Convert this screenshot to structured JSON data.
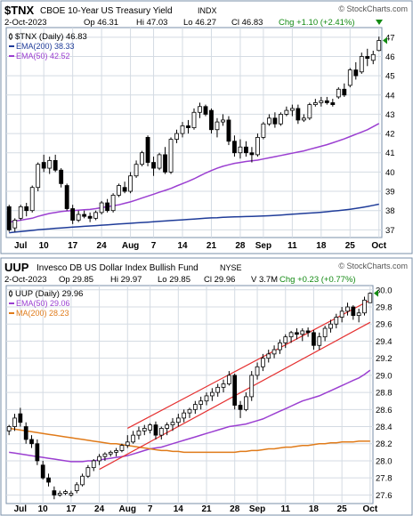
{
  "brand": "© StockCharts.com",
  "colors": {
    "frame": "#7a8fa8",
    "plot_bg": "#ffffff",
    "grid": "#d4dbe3",
    "candle_up_fill": "#ffffff",
    "candle_down_fill": "#000000",
    "ema200": "#1f3c99",
    "ema50": "#9b3fd1",
    "ma200": "#e07b1a",
    "trendline": "#e53030",
    "green": "#138a13",
    "price_marker": "#138a13"
  },
  "chart_data": [
    {
      "type": "candlestick",
      "symbol": "$TNX",
      "name": "CBOE 10-Year US Treasury Yield",
      "exchange": "INDX",
      "date": "2-Oct-2023",
      "open_label": "Op 46.31",
      "high_label": "Hi 47.03",
      "low_label": "Lo 46.27",
      "close_label": "Cl 46.83",
      "change_label": "Chg +1.10 (+2.41%)",
      "legend": [
        {
          "label": "$TNX (Daily) 46.83",
          "color": "#000000",
          "kind": "price"
        },
        {
          "label": "EMA(200) 38.33",
          "color": "#1f3c99",
          "kind": "line"
        },
        {
          "label": "EMA(50) 42.52",
          "color": "#9b3fd1",
          "kind": "line"
        }
      ],
      "y_ticks": [
        "37",
        "38",
        "39",
        "40",
        "41",
        "42",
        "43",
        "44",
        "45",
        "46",
        "47"
      ],
      "ylim": [
        36.6,
        47.5
      ],
      "x_ticks": [
        {
          "label": "Jul",
          "i": 2
        },
        {
          "label": "10",
          "i": 6
        },
        {
          "label": "17",
          "i": 11
        },
        {
          "label": "24",
          "i": 16
        },
        {
          "label": "Aug",
          "i": 21
        },
        {
          "label": "7",
          "i": 25
        },
        {
          "label": "14",
          "i": 30
        },
        {
          "label": "21",
          "i": 35
        },
        {
          "label": "28",
          "i": 40
        },
        {
          "label": "Sep",
          "i": 44
        },
        {
          "label": "11",
          "i": 49
        },
        {
          "label": "18",
          "i": 54
        },
        {
          "label": "25",
          "i": 59
        },
        {
          "label": "Oct",
          "i": 64
        }
      ],
      "n_slots": 65,
      "ohlc": [
        [
          38.2,
          38.3,
          36.9,
          37.0
        ],
        [
          37.1,
          37.6,
          36.9,
          37.5
        ],
        [
          37.6,
          38.3,
          37.5,
          38.2
        ],
        [
          38.2,
          38.4,
          37.7,
          38.0
        ],
        [
          38.0,
          39.3,
          37.9,
          39.2
        ],
        [
          39.2,
          40.5,
          39.0,
          40.4
        ],
        [
          40.5,
          40.9,
          40.0,
          40.2
        ],
        [
          40.2,
          40.8,
          39.9,
          40.6
        ],
        [
          40.6,
          40.9,
          40.0,
          40.1
        ],
        [
          40.1,
          40.2,
          39.2,
          39.4
        ],
        [
          39.3,
          39.4,
          38.0,
          38.1
        ],
        [
          38.1,
          38.3,
          37.3,
          37.5
        ],
        [
          37.5,
          38.0,
          37.4,
          37.8
        ],
        [
          37.8,
          38.0,
          37.6,
          37.7
        ],
        [
          37.7,
          37.9,
          37.4,
          37.6
        ],
        [
          37.6,
          38.0,
          37.5,
          37.9
        ],
        [
          37.9,
          38.5,
          37.8,
          38.4
        ],
        [
          38.4,
          38.6,
          37.9,
          38.0
        ],
        [
          38.0,
          38.9,
          37.9,
          38.8
        ],
        [
          38.8,
          39.4,
          38.7,
          39.3
        ],
        [
          39.2,
          39.5,
          38.9,
          39.0
        ],
        [
          39.0,
          40.0,
          38.9,
          39.8
        ],
        [
          39.8,
          40.6,
          39.7,
          40.4
        ],
        [
          40.4,
          41.1,
          40.3,
          41.0
        ],
        [
          41.8,
          41.9,
          40.3,
          40.5
        ],
        [
          40.5,
          40.8,
          39.8,
          40.2
        ],
        [
          40.2,
          41.0,
          40.1,
          40.9
        ],
        [
          40.9,
          41.3,
          39.9,
          40.0
        ],
        [
          40.0,
          41.8,
          39.9,
          41.7
        ],
        [
          41.7,
          42.2,
          41.5,
          42.0
        ],
        [
          42.0,
          42.6,
          41.8,
          42.4
        ],
        [
          42.4,
          42.7,
          42.0,
          42.3
        ],
        [
          42.3,
          43.3,
          42.2,
          43.1
        ],
        [
          43.1,
          43.6,
          42.8,
          43.4
        ],
        [
          43.4,
          43.5,
          42.9,
          43.0
        ],
        [
          43.2,
          43.3,
          42.0,
          42.2
        ],
        [
          42.2,
          42.8,
          41.8,
          42.6
        ],
        [
          42.6,
          43.0,
          42.4,
          42.7
        ],
        [
          42.7,
          42.9,
          41.4,
          41.6
        ],
        [
          41.6,
          41.9,
          40.8,
          41.0
        ],
        [
          41.0,
          41.7,
          40.7,
          41.3
        ],
        [
          41.3,
          41.6,
          40.8,
          41.0
        ],
        [
          41.0,
          41.3,
          40.5,
          40.9
        ],
        [
          40.9,
          42.0,
          40.8,
          41.8
        ],
        [
          41.8,
          42.6,
          41.7,
          42.5
        ],
        [
          42.5,
          43.0,
          42.4,
          42.8
        ],
        [
          42.8,
          43.1,
          42.3,
          42.5
        ],
        [
          42.5,
          43.1,
          42.4,
          43.0
        ],
        [
          43.0,
          43.4,
          42.9,
          43.2
        ],
        [
          43.2,
          43.5,
          42.9,
          43.3
        ],
        [
          43.3,
          43.5,
          42.5,
          42.7
        ],
        [
          42.7,
          43.0,
          42.6,
          42.8
        ],
        [
          42.8,
          43.6,
          42.7,
          43.5
        ],
        [
          43.5,
          43.8,
          43.4,
          43.6
        ],
        [
          43.6,
          43.9,
          43.4,
          43.7
        ],
        [
          43.7,
          43.9,
          43.5,
          43.6
        ],
        [
          43.6,
          43.8,
          43.4,
          43.5
        ],
        [
          43.9,
          44.4,
          43.8,
          44.3
        ],
        [
          44.3,
          44.6,
          43.9,
          44.0
        ],
        [
          44.5,
          45.4,
          44.4,
          45.3
        ],
        [
          45.3,
          45.7,
          44.8,
          45.0
        ],
        [
          45.2,
          46.2,
          45.1,
          46.0
        ],
        [
          46.0,
          46.4,
          45.5,
          45.9
        ],
        [
          45.8,
          46.3,
          45.6,
          46.1
        ],
        [
          46.31,
          47.03,
          46.27,
          46.83
        ]
      ],
      "ema200": [
        36.85,
        36.88,
        36.91,
        36.94,
        36.97,
        37.0,
        37.03,
        37.05,
        37.08,
        37.1,
        37.12,
        37.14,
        37.16,
        37.18,
        37.2,
        37.22,
        37.24,
        37.26,
        37.28,
        37.3,
        37.32,
        37.34,
        37.36,
        37.38,
        37.4,
        37.42,
        37.44,
        37.46,
        37.48,
        37.5,
        37.52,
        37.54,
        37.56,
        37.58,
        37.6,
        37.62,
        37.63,
        37.65,
        37.66,
        37.67,
        37.68,
        37.69,
        37.7,
        37.71,
        37.72,
        37.73,
        37.75,
        37.77,
        37.79,
        37.81,
        37.83,
        37.85,
        37.87,
        37.89,
        37.91,
        37.94,
        37.97,
        38.0,
        38.03,
        38.07,
        38.11,
        38.16,
        38.21,
        38.27,
        38.33
      ],
      "ema50": [
        37.4,
        37.45,
        37.5,
        37.55,
        37.6,
        37.7,
        37.78,
        37.85,
        37.9,
        37.95,
        37.98,
        38.0,
        38.02,
        38.04,
        38.06,
        38.1,
        38.15,
        38.2,
        38.25,
        38.3,
        38.38,
        38.45,
        38.55,
        38.65,
        38.75,
        38.85,
        38.95,
        39.05,
        39.15,
        39.28,
        39.4,
        39.52,
        39.65,
        39.8,
        39.95,
        40.08,
        40.2,
        40.3,
        40.38,
        40.45,
        40.5,
        40.55,
        40.58,
        40.62,
        40.68,
        40.74,
        40.8,
        40.86,
        40.92,
        40.98,
        41.04,
        41.1,
        41.18,
        41.26,
        41.34,
        41.42,
        41.52,
        41.62,
        41.72,
        41.84,
        41.96,
        42.08,
        42.2,
        42.36,
        42.52
      ]
    },
    {
      "type": "candlestick",
      "symbol": "UUP",
      "name": "Invesco DB US Dollar Index Bullish Fund",
      "exchange": "NYSE",
      "date": "2-Oct-2023",
      "open_label": "Op 29.85",
      "high_label": "Hi 29.97",
      "low_label": "Lo 29.85",
      "close_label": "Cl 29.96",
      "volume_label": "V 3.7M",
      "change_label": "Chg +0.23 (+0.77%)",
      "legend": [
        {
          "label": "UUP (Daily) 29.96",
          "color": "#000000",
          "kind": "price"
        },
        {
          "label": "EMA(50) 29.06",
          "color": "#9b3fd1",
          "kind": "line"
        },
        {
          "label": "MA(200) 28.23",
          "color": "#e07b1a",
          "kind": "line"
        }
      ],
      "y_ticks": [
        "27.6",
        "27.8",
        "28.0",
        "28.2",
        "28.4",
        "28.6",
        "28.8",
        "29.0",
        "29.2",
        "29.4",
        "29.6",
        "29.8",
        "30.0"
      ],
      "ylim": [
        27.5,
        30.05
      ],
      "x_ticks": [
        {
          "label": "Jul",
          "i": 2
        },
        {
          "label": "10",
          "i": 6
        },
        {
          "label": "17",
          "i": 11
        },
        {
          "label": "24",
          "i": 16
        },
        {
          "label": "Aug",
          "i": 21
        },
        {
          "label": "7",
          "i": 25
        },
        {
          "label": "14",
          "i": 30
        },
        {
          "label": "21",
          "i": 35
        },
        {
          "label": "28",
          "i": 40
        },
        {
          "label": "Sep",
          "i": 44
        },
        {
          "label": "11",
          "i": 49
        },
        {
          "label": "18",
          "i": 54
        },
        {
          "label": "25",
          "i": 59
        },
        {
          "label": "Oct",
          "i": 64
        }
      ],
      "n_slots": 65,
      "ohlc": [
        [
          28.35,
          28.42,
          28.3,
          28.4
        ],
        [
          28.4,
          28.55,
          28.35,
          28.5
        ],
        [
          28.55,
          28.62,
          28.4,
          28.45
        ],
        [
          28.4,
          28.45,
          28.2,
          28.25
        ],
        [
          28.25,
          28.3,
          28.15,
          28.2
        ],
        [
          28.2,
          28.25,
          27.95,
          28.0
        ],
        [
          27.95,
          28.0,
          27.78,
          27.8
        ],
        [
          27.8,
          27.85,
          27.7,
          27.75
        ],
        [
          27.65,
          27.7,
          27.55,
          27.6
        ],
        [
          27.6,
          27.65,
          27.58,
          27.62
        ],
        [
          27.62,
          27.66,
          27.6,
          27.64
        ],
        [
          27.6,
          27.65,
          27.58,
          27.62
        ],
        [
          27.65,
          27.75,
          27.62,
          27.72
        ],
        [
          27.72,
          27.85,
          27.7,
          27.82
        ],
        [
          27.82,
          27.95,
          27.8,
          27.92
        ],
        [
          27.92,
          28.02,
          27.88,
          28.0
        ],
        [
          28.0,
          28.08,
          27.95,
          28.05
        ],
        [
          28.05,
          28.1,
          28.0,
          28.08
        ],
        [
          28.08,
          28.12,
          28.05,
          28.1
        ],
        [
          28.1,
          28.15,
          28.05,
          28.12
        ],
        [
          28.12,
          28.2,
          28.1,
          28.18
        ],
        [
          28.18,
          28.3,
          28.15,
          28.22
        ],
        [
          28.22,
          28.35,
          28.2,
          28.3
        ],
        [
          28.3,
          28.4,
          28.25,
          28.35
        ],
        [
          28.35,
          28.42,
          28.3,
          28.38
        ],
        [
          28.36,
          28.44,
          28.32,
          28.42
        ],
        [
          28.42,
          28.46,
          28.25,
          28.3
        ],
        [
          28.3,
          28.4,
          28.25,
          28.38
        ],
        [
          28.38,
          28.45,
          28.3,
          28.42
        ],
        [
          28.42,
          28.5,
          28.35,
          28.45
        ],
        [
          28.45,
          28.55,
          28.4,
          28.5
        ],
        [
          28.5,
          28.6,
          28.45,
          28.56
        ],
        [
          28.56,
          28.62,
          28.5,
          28.6
        ],
        [
          28.6,
          28.7,
          28.55,
          28.66
        ],
        [
          28.66,
          28.75,
          28.6,
          28.7
        ],
        [
          28.7,
          28.8,
          28.65,
          28.76
        ],
        [
          28.76,
          28.85,
          28.7,
          28.8
        ],
        [
          28.8,
          28.9,
          28.75,
          28.86
        ],
        [
          28.86,
          28.95,
          28.8,
          28.9
        ],
        [
          28.9,
          29.05,
          28.88,
          29.0
        ],
        [
          29.0,
          29.02,
          28.6,
          28.65
        ],
        [
          28.65,
          28.7,
          28.5,
          28.6
        ],
        [
          28.6,
          28.8,
          28.58,
          28.75
        ],
        [
          28.75,
          29.05,
          28.7,
          29.0
        ],
        [
          29.0,
          29.15,
          28.95,
          29.1
        ],
        [
          29.1,
          29.25,
          29.05,
          29.2
        ],
        [
          29.2,
          29.3,
          29.15,
          29.25
        ],
        [
          29.25,
          29.35,
          29.2,
          29.3
        ],
        [
          29.3,
          29.42,
          29.25,
          29.38
        ],
        [
          29.38,
          29.48,
          29.32,
          29.45
        ],
        [
          29.45,
          29.52,
          29.38,
          29.5
        ],
        [
          29.5,
          29.55,
          29.42,
          29.48
        ],
        [
          29.48,
          29.55,
          29.4,
          29.52
        ],
        [
          29.52,
          29.56,
          29.45,
          29.5
        ],
        [
          29.5,
          29.53,
          29.3,
          29.35
        ],
        [
          29.35,
          29.5,
          29.3,
          29.45
        ],
        [
          29.45,
          29.58,
          29.4,
          29.55
        ],
        [
          29.55,
          29.65,
          29.5,
          29.6
        ],
        [
          29.6,
          29.72,
          29.55,
          29.68
        ],
        [
          29.68,
          29.8,
          29.62,
          29.75
        ],
        [
          29.75,
          29.85,
          29.7,
          29.8
        ],
        [
          29.8,
          29.82,
          29.65,
          29.7
        ],
        [
          29.7,
          29.78,
          29.62,
          29.73
        ],
        [
          29.73,
          29.92,
          29.7,
          29.88
        ],
        [
          29.85,
          29.97,
          29.85,
          29.96
        ]
      ],
      "ema50": [
        28.1,
        28.09,
        28.08,
        28.07,
        28.06,
        28.05,
        28.04,
        28.03,
        28.02,
        28.01,
        28.0,
        27.99,
        27.99,
        27.99,
        28.0,
        28.0,
        28.01,
        28.02,
        28.03,
        28.04,
        28.05,
        28.06,
        28.08,
        28.1,
        28.12,
        28.14,
        28.15,
        28.16,
        28.18,
        28.2,
        28.22,
        28.24,
        28.26,
        28.28,
        28.3,
        28.32,
        28.34,
        28.36,
        28.38,
        28.4,
        28.41,
        28.42,
        28.43,
        28.45,
        28.47,
        28.49,
        28.52,
        28.55,
        28.58,
        28.61,
        28.64,
        28.67,
        28.7,
        28.72,
        28.74,
        28.76,
        28.79,
        28.82,
        28.85,
        28.88,
        28.91,
        28.94,
        28.97,
        29.01,
        29.06
      ],
      "ma200": [
        28.38,
        28.37,
        28.36,
        28.35,
        28.34,
        28.33,
        28.32,
        28.31,
        28.3,
        28.29,
        28.28,
        28.27,
        28.26,
        28.25,
        28.24,
        28.23,
        28.22,
        28.21,
        28.2,
        28.2,
        28.19,
        28.18,
        28.17,
        28.16,
        28.15,
        28.14,
        28.13,
        28.12,
        28.12,
        28.11,
        28.11,
        28.1,
        28.1,
        28.1,
        28.1,
        28.1,
        28.1,
        28.1,
        28.1,
        28.1,
        28.1,
        28.11,
        28.11,
        28.12,
        28.12,
        28.13,
        28.14,
        28.14,
        28.15,
        28.16,
        28.16,
        28.17,
        28.18,
        28.18,
        28.19,
        28.2,
        28.2,
        28.21,
        28.21,
        28.22,
        28.22,
        28.22,
        28.23,
        28.23,
        28.23
      ],
      "channel": [
        {
          "from": [
            16,
            27.9
          ],
          "to": [
            64,
            29.62
          ]
        },
        {
          "from": [
            21,
            28.38
          ],
          "to": [
            64,
            29.88
          ]
        }
      ]
    }
  ]
}
